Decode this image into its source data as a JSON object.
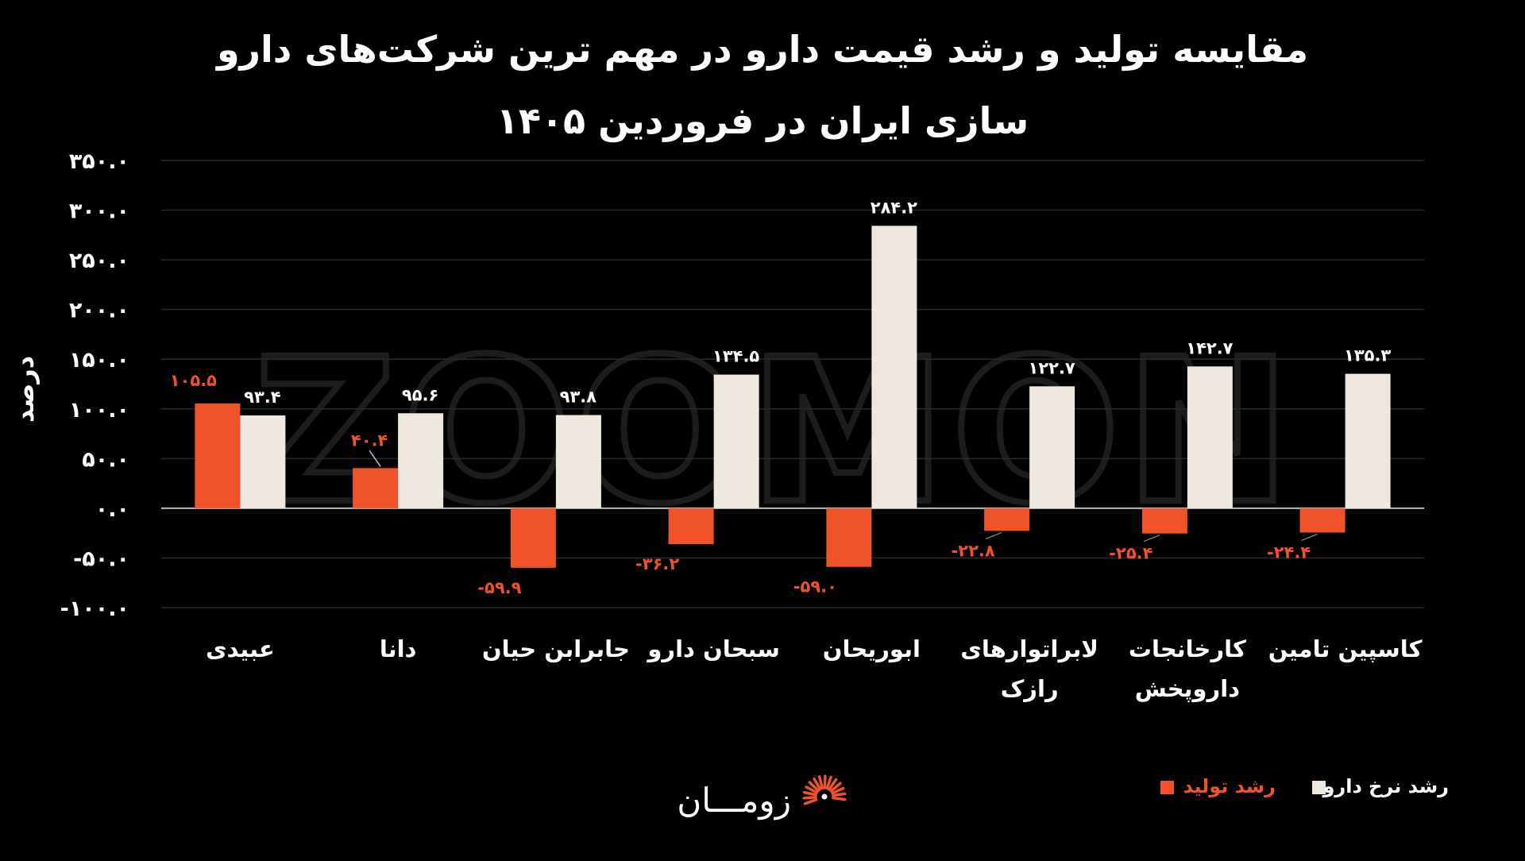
{
  "title_line1": "مقایسه تولید و رشد قیمت دارو در مهم ترین شرکت‌های دارو",
  "title_line2": "سازی ایران در فروردین ۱۴۰۵",
  "watermark": "ZOOMON",
  "brand": {
    "name": "زومـــان",
    "logo_icon": "sunburst-logo-icon"
  },
  "colors": {
    "production": "#F0532A",
    "price": "#EEE8DF",
    "background": "#000000",
    "text": "#FFFFFF",
    "grid": "#2a2a2a"
  },
  "chart_data": {
    "type": "bar",
    "title": "مقایسه تولید و رشد قیمت دارو در مهم ترین شرکت‌های دارو سازی ایران در فروردین ۱۴۰۵",
    "ylabel": "درصد",
    "xlabel": "",
    "ylim": [
      -100,
      350
    ],
    "yticks": [
      -100,
      -50,
      0,
      50,
      100,
      150,
      200,
      250,
      300,
      350
    ],
    "ytick_labels": [
      "-۱۰۰.۰",
      "-۵۰.۰",
      "۰.۰",
      "۵۰.۰",
      "۱۰۰.۰",
      "۱۵۰.۰",
      "۲۰۰.۰",
      "۲۵۰.۰",
      "۳۰۰.۰",
      "۳۵۰.۰"
    ],
    "grid": true,
    "legend_position": "bottom-right",
    "categories": [
      "عبیدی",
      "دانا",
      "جابرابن حیان",
      "سبحان دارو",
      "ابوریحان",
      "لابراتوارهای رازک",
      "کارخانجات داروپخش",
      "کاسپین تامین"
    ],
    "category_lines": [
      [
        "عبیدی"
      ],
      [
        "دانا"
      ],
      [
        "جابرابن حیان"
      ],
      [
        "سبحان دارو"
      ],
      [
        "ابوریحان"
      ],
      [
        "لابراتوارهای",
        "رازک"
      ],
      [
        "کارخانجات",
        "داروپخش"
      ],
      [
        "کاسپین تامین"
      ]
    ],
    "series": [
      {
        "name": "رشد تولید",
        "color": "#F0532A",
        "values": [
          105.5,
          40.4,
          -59.9,
          -36.2,
          -59.0,
          -22.8,
          -25.4,
          -24.4
        ],
        "labels": [
          "۱۰۵.۵",
          "۴۰.۴",
          "-۵۹.۹",
          "-۳۶.۲",
          "-۵۹.۰",
          "-۲۲.۸",
          "-۲۵.۴",
          "-۲۴.۴"
        ]
      },
      {
        "name": "رشد نرخ دارو",
        "color": "#EEE8DF",
        "values": [
          93.4,
          95.6,
          93.8,
          134.5,
          284.2,
          122.7,
          142.7,
          135.3
        ],
        "labels": [
          "۹۳.۴",
          "۹۵.۶",
          "۹۳.۸",
          "۱۳۴.۵",
          "۲۸۴.۲",
          "۱۲۲.۷",
          "۱۴۲.۷",
          "۱۳۵.۳"
        ]
      }
    ]
  }
}
